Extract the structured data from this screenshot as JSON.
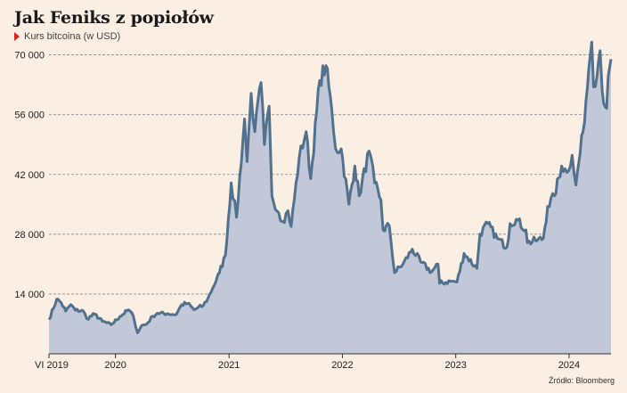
{
  "header": {
    "title": "Jak Feniks z popiołów",
    "subtitle": "Kurs bitcoina (w USD)"
  },
  "footer": {
    "source": "Źródło: Bloomberg"
  },
  "colors": {
    "background": "#fbeee3",
    "area_fill": "#c3c8d8",
    "line": "#51718d",
    "grid": "#8a8a8a",
    "marker": "#d9231f"
  },
  "chart_data": {
    "type": "area",
    "ylim": [
      0,
      72000
    ],
    "xlim": [
      "2019-06-01",
      "2024-05-15"
    ],
    "ytick_values": [
      14000,
      28000,
      42000,
      56000,
      70000
    ],
    "ytick_labels": [
      "14 000",
      "28 000",
      "42 000",
      "56 000",
      "70 000"
    ],
    "xtick_labels": [
      {
        "date": "2019-06-01",
        "label": "VI 2019"
      },
      {
        "date": "2020-01-01",
        "label": "2020"
      },
      {
        "date": "2021-01-01",
        "label": "2021"
      },
      {
        "date": "2022-01-01",
        "label": "2022"
      },
      {
        "date": "2023-01-01",
        "label": "2023"
      },
      {
        "date": "2024-01-01",
        "label": "2024"
      }
    ],
    "grid": true,
    "series": [
      {
        "values": [
          [
            "2019-06-01",
            8000
          ],
          [
            "2019-06-26",
            12800
          ],
          [
            "2019-07-10",
            12000
          ],
          [
            "2019-07-25",
            10000
          ],
          [
            "2019-08-10",
            11500
          ],
          [
            "2019-08-25",
            10200
          ],
          [
            "2019-09-20",
            10000
          ],
          [
            "2019-10-01",
            8200
          ],
          [
            "2019-10-26",
            9300
          ],
          [
            "2019-11-20",
            7600
          ],
          [
            "2019-12-18",
            6800
          ],
          [
            "2020-01-15",
            8700
          ],
          [
            "2020-02-12",
            10300
          ],
          [
            "2020-02-28",
            8800
          ],
          [
            "2020-03-12",
            4900
          ],
          [
            "2020-03-25",
            6600
          ],
          [
            "2020-04-10",
            6900
          ],
          [
            "2020-04-30",
            8800
          ],
          [
            "2020-05-15",
            9500
          ],
          [
            "2020-06-15",
            9400
          ],
          [
            "2020-07-15",
            9200
          ],
          [
            "2020-08-01",
            11500
          ],
          [
            "2020-08-20",
            11800
          ],
          [
            "2020-09-10",
            10300
          ],
          [
            "2020-10-10",
            11300
          ],
          [
            "2020-10-25",
            13000
          ],
          [
            "2020-11-10",
            15500
          ],
          [
            "2020-12-01",
            19000
          ],
          [
            "2020-12-20",
            23000
          ],
          [
            "2021-01-08",
            40000
          ],
          [
            "2021-01-25",
            32000
          ],
          [
            "2021-02-20",
            55000
          ],
          [
            "2021-02-28",
            45000
          ],
          [
            "2021-03-13",
            61000
          ],
          [
            "2021-03-25",
            52000
          ],
          [
            "2021-04-14",
            63500
          ],
          [
            "2021-04-25",
            49000
          ],
          [
            "2021-05-10",
            58000
          ],
          [
            "2021-05-19",
            37000
          ],
          [
            "2021-06-10",
            33000
          ],
          [
            "2021-06-22",
            31000
          ],
          [
            "2021-07-10",
            33500
          ],
          [
            "2021-07-20",
            29800
          ],
          [
            "2021-08-15",
            46000
          ],
          [
            "2021-09-06",
            52000
          ],
          [
            "2021-09-21",
            41000
          ],
          [
            "2021-10-20",
            64000
          ],
          [
            "2021-11-09",
            67500
          ],
          [
            "2021-11-28",
            57000
          ],
          [
            "2021-12-10",
            48000
          ],
          [
            "2021-12-28",
            48000
          ],
          [
            "2022-01-22",
            35000
          ],
          [
            "2022-02-10",
            44000
          ],
          [
            "2022-02-24",
            37000
          ],
          [
            "2022-03-28",
            47500
          ],
          [
            "2022-04-15",
            40000
          ],
          [
            "2022-05-05",
            36000
          ],
          [
            "2022-05-12",
            29000
          ],
          [
            "2022-06-01",
            30000
          ],
          [
            "2022-06-18",
            19000
          ],
          [
            "2022-07-15",
            21000
          ],
          [
            "2022-08-14",
            24500
          ],
          [
            "2022-09-10",
            21500
          ],
          [
            "2022-10-15",
            19200
          ],
          [
            "2022-11-05",
            21000
          ],
          [
            "2022-11-10",
            16500
          ],
          [
            "2022-12-15",
            17000
          ],
          [
            "2023-01-05",
            16800
          ],
          [
            "2023-01-28",
            23500
          ],
          [
            "2023-03-10",
            20000
          ],
          [
            "2023-03-20",
            28000
          ],
          [
            "2023-04-14",
            30500
          ],
          [
            "2023-05-15",
            27000
          ],
          [
            "2023-06-15",
            25000
          ],
          [
            "2023-06-25",
            30500
          ],
          [
            "2023-07-15",
            31500
          ],
          [
            "2023-08-15",
            29000
          ],
          [
            "2023-08-20",
            26000
          ],
          [
            "2023-09-15",
            26500
          ],
          [
            "2023-10-10",
            27000
          ],
          [
            "2023-10-24",
            34500
          ],
          [
            "2023-11-15",
            37000
          ],
          [
            "2023-12-08",
            44000
          ],
          [
            "2023-12-25",
            42500
          ],
          [
            "2024-01-11",
            46500
          ],
          [
            "2024-01-23",
            39500
          ],
          [
            "2024-02-15",
            52000
          ],
          [
            "2024-03-05",
            67000
          ],
          [
            "2024-03-14",
            73000
          ],
          [
            "2024-03-20",
            62500
          ],
          [
            "2024-04-10",
            71000
          ],
          [
            "2024-04-17",
            61500
          ],
          [
            "2024-05-01",
            57500
          ],
          [
            "2024-05-06",
            65000
          ],
          [
            "2024-05-15",
            69000
          ]
        ]
      }
    ]
  }
}
